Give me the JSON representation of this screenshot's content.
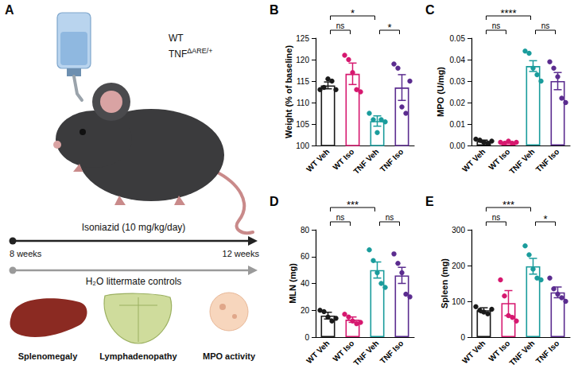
{
  "panel_a": {
    "panel": "A",
    "strain_wt": "WT",
    "strain_tnf": {
      "text": "TNF",
      "superscript": "ΔARE/+"
    },
    "treatment": "Isoniazid (10 mg/kg/day)",
    "start": "8 weeks",
    "end": "12 weeks",
    "control": "H₂O littermate controls",
    "readouts": [
      "Splenomegaly",
      "Lymphadenopathy",
      "MPO activity"
    ]
  },
  "chart_data": [
    {
      "type": "bar",
      "panel": "B",
      "y_label": "Weight (% of baseline)",
      "categories": [
        "WT Veh",
        "WT Iso",
        "TNF Veh",
        "TNF Iso"
      ],
      "values": [
        114,
        116.7,
        105.7,
        113.5
      ],
      "errors": [
        0.8,
        2.5,
        1.2,
        3
      ],
      "points": [
        [
          113,
          113.5,
          115.5,
          115,
          113
        ],
        [
          121,
          120,
          117,
          113,
          112.5
        ],
        [
          107.5,
          106,
          103,
          106,
          105.5
        ],
        [
          119,
          118,
          109,
          107.5,
          115
        ]
      ],
      "colors": [
        "#1a1a1a",
        "#d6186f",
        "#1a9c9c",
        "#5b2c8f"
      ],
      "ylim": [
        100,
        125
      ],
      "yticks": [
        100,
        105,
        110,
        115,
        120,
        125
      ],
      "grid": false,
      "annotations": [
        {
          "from": 0,
          "to": 2,
          "label": "*"
        },
        {
          "from": 0,
          "to": 1,
          "label": "ns"
        },
        {
          "from": 2,
          "to": 3,
          "label": "*"
        }
      ]
    },
    {
      "type": "bar",
      "panel": "C",
      "y_label": "MPO (U/mg)",
      "categories": [
        "WT Veh",
        "WT Iso",
        "TNF Veh",
        "TNF Iso"
      ],
      "values": [
        0.002,
        0.0015,
        0.037,
        0.03
      ],
      "errors": [
        0.0005,
        0.0003,
        0.0025,
        0.004
      ],
      "points": [
        [
          0.003,
          0.0025,
          0.0015,
          0.001,
          0.002
        ],
        [
          0.0015,
          0.001,
          0.002,
          0.001,
          0.0015
        ],
        [
          0.044,
          0.043,
          0.036,
          0.033,
          0.03
        ],
        [
          0.039,
          0.036,
          0.032,
          0.022,
          0.02
        ]
      ],
      "colors": [
        "#1a1a1a",
        "#d6186f",
        "#1a9c9c",
        "#5b2c8f"
      ],
      "ylim": [
        0,
        0.05
      ],
      "yticks": [
        {
          "value": 0,
          "label": "0.00"
        },
        {
          "value": 0.01,
          "label": "0.01"
        },
        {
          "value": 0.02,
          "label": "0.02"
        },
        {
          "value": 0.03,
          "label": "0.03"
        },
        {
          "value": 0.04,
          "label": "0.04"
        },
        {
          "value": 0.05,
          "label": "0.05"
        }
      ],
      "grid": false,
      "annotations": [
        {
          "from": 0,
          "to": 2,
          "label": "****"
        },
        {
          "from": 0,
          "to": 1,
          "label": "ns"
        },
        {
          "from": 2,
          "to": 3,
          "label": "ns"
        }
      ]
    },
    {
      "type": "bar",
      "panel": "D",
      "y_label": "MLN (mg)",
      "categories": [
        "WT Veh",
        "WT Iso",
        "TNF Veh",
        "TNF Iso"
      ],
      "values": [
        16,
        13,
        50,
        46
      ],
      "errors": [
        2.5,
        2,
        6,
        6
      ],
      "points": [
        [
          20,
          19,
          15,
          12,
          14
        ],
        [
          17,
          15,
          12,
          10,
          11
        ],
        [
          65,
          57,
          48,
          40,
          37
        ],
        [
          62,
          55,
          48,
          32,
          30
        ]
      ],
      "colors": [
        "#1a1a1a",
        "#d6186f",
        "#1a9c9c",
        "#5b2c8f"
      ],
      "ylim": [
        0,
        80
      ],
      "yticks": [
        0,
        20,
        40,
        60,
        80
      ],
      "grid": false,
      "annotations": [
        {
          "from": 0,
          "to": 2,
          "label": "***"
        },
        {
          "from": 0,
          "to": 1,
          "label": "ns"
        },
        {
          "from": 2,
          "to": 3,
          "label": "ns"
        }
      ]
    },
    {
      "type": "bar",
      "panel": "E",
      "y_label": "Spleen (mg)",
      "categories": [
        "WT Veh",
        "WT Iso",
        "TNF Veh",
        "TNF Iso"
      ],
      "values": [
        75,
        95,
        198,
        125
      ],
      "errors": [
        7,
        35,
        22,
        15
      ],
      "points": [
        [
          85,
          75,
          70,
          65,
          78
        ],
        [
          160,
          115,
          60,
          55,
          45
        ],
        [
          255,
          230,
          190,
          165,
          160
        ],
        [
          165,
          135,
          120,
          110,
          100
        ]
      ],
      "colors": [
        "#1a1a1a",
        "#d6186f",
        "#1a9c9c",
        "#5b2c8f"
      ],
      "ylim": [
        0,
        300
      ],
      "yticks": [
        0,
        100,
        200,
        300
      ],
      "grid": false,
      "annotations": [
        {
          "from": 0,
          "to": 2,
          "label": "***"
        },
        {
          "from": 0,
          "to": 1,
          "label": "ns"
        },
        {
          "from": 2,
          "to": 3,
          "label": "*"
        }
      ]
    }
  ]
}
